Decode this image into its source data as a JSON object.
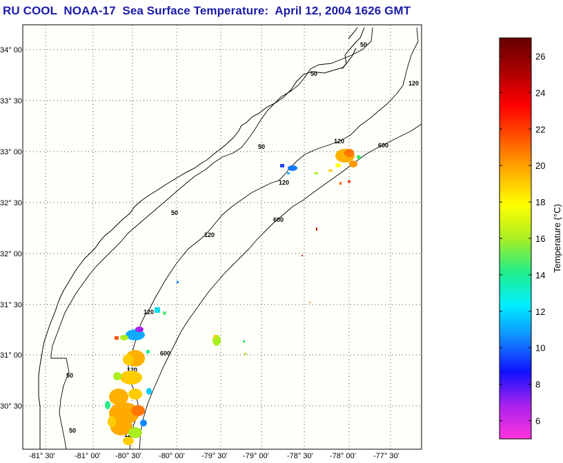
{
  "title": "RU COOL  NOAA-17  Sea Surface Temperature:  April 12, 2004 1626 GMT",
  "map": {
    "lon_labels": [
      "-81° 30'",
      "-81° 00'",
      "-80° 30'",
      "-80° 00'",
      "-79° 30'",
      "-79° 00'",
      "-78° 30'",
      "-78° 00'",
      "-77° 30'"
    ],
    "lat_labels": [
      "34° 00'",
      "33° 30'",
      "33° 00'",
      "32° 30'",
      "32° 00'",
      "31° 30'",
      "31° 00'",
      "30° 30'"
    ],
    "contour_labels": [
      "50",
      "120",
      "600"
    ],
    "grid": "dotted"
  },
  "colorbar": {
    "label": "Temperature (°C)",
    "ticks": [
      "26",
      "24",
      "22",
      "20",
      "18",
      "16",
      "14",
      "12",
      "10",
      "8",
      "6"
    ],
    "range": [
      5,
      27
    ],
    "colors": [
      "#ff33dd",
      "#aa22ee",
      "#1111ff",
      "#1188ff",
      "#00eeff",
      "#22ee88",
      "#aaee22",
      "#ffff00",
      "#ffb000",
      "#ff5500",
      "#ff0000",
      "#aa0000",
      "#660000"
    ]
  }
}
